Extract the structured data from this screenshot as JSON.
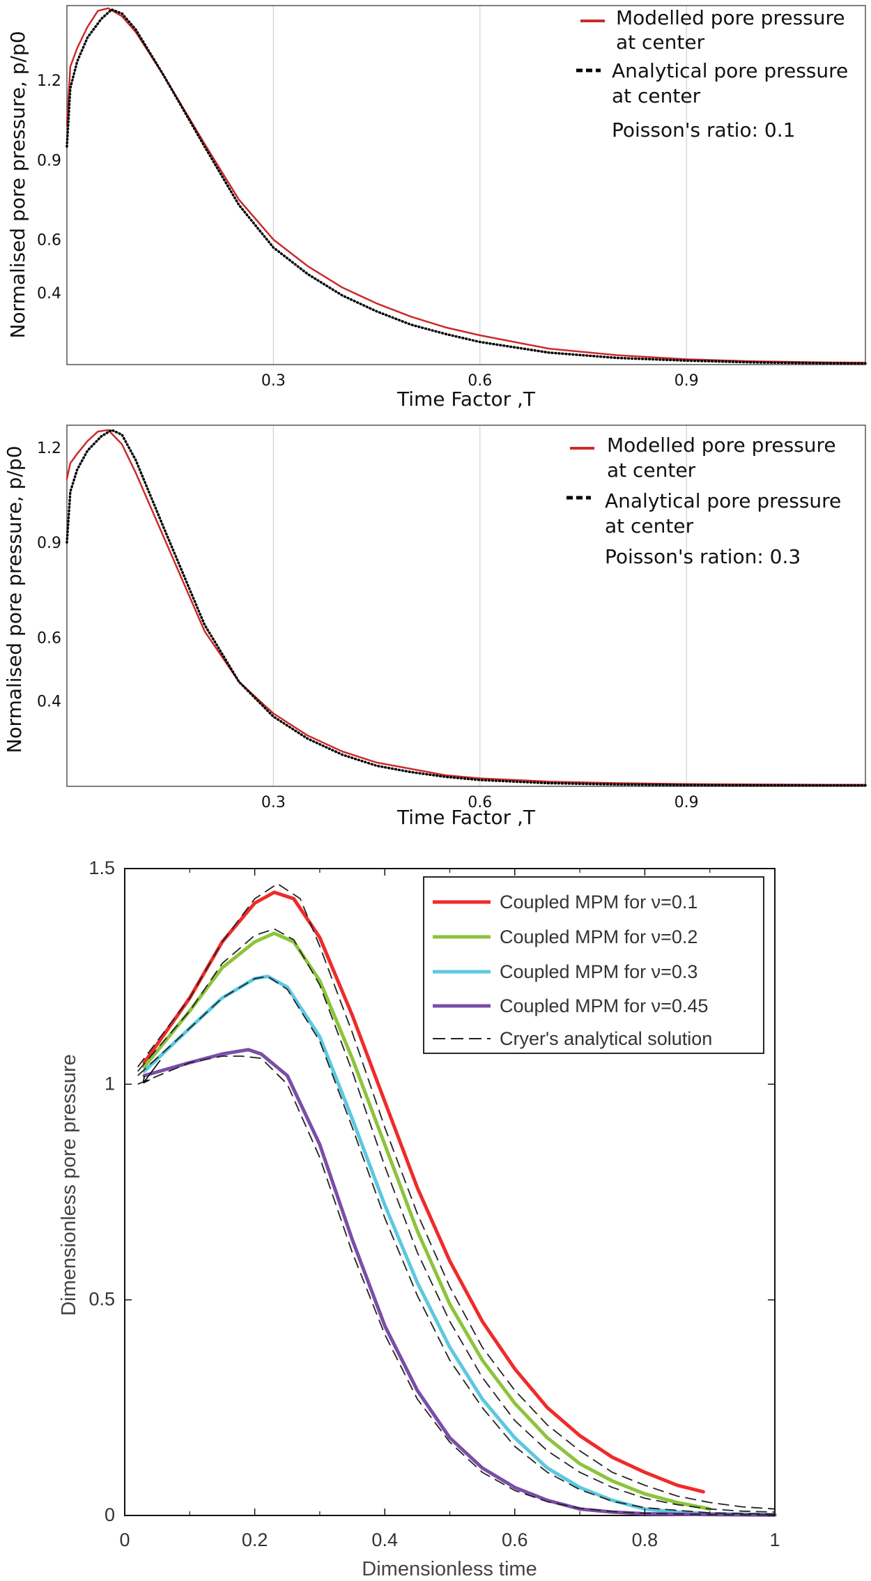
{
  "chart_data": [
    {
      "type": "line",
      "xlabel": "Time Factor ,T",
      "ylabel": "Normalised pore pressure, p/p0",
      "xlim": [
        0,
        1.16
      ],
      "ylim": [
        0.13,
        1.48
      ],
      "xticks": [
        0.3,
        0.6,
        0.9
      ],
      "xtick_labels": [
        "0.3",
        "0.6",
        "0.9"
      ],
      "yticks": [
        0.4,
        0.6,
        0.9,
        1.2
      ],
      "ytick_labels": [
        "0.4",
        "0.6",
        "0.9",
        "1.2"
      ],
      "grid": "vertical",
      "legend_position": "top-right",
      "annotation": "Poisson's ratio: 0.1",
      "series": [
        {
          "name": "Modelled pore pressure at center",
          "legend_line1": "Modelled pore pressure",
          "legend_line2": "at center",
          "color": "#cc2a2a",
          "style": "solid",
          "x": [
            0,
            0.005,
            0.015,
            0.03,
            0.045,
            0.06,
            0.08,
            0.1,
            0.14,
            0.2,
            0.25,
            0.3,
            0.35,
            0.4,
            0.45,
            0.5,
            0.55,
            0.6,
            0.7,
            0.8,
            0.9,
            1.0,
            1.1,
            1.16
          ],
          "y": [
            1.03,
            1.25,
            1.32,
            1.4,
            1.46,
            1.47,
            1.44,
            1.38,
            1.22,
            0.96,
            0.75,
            0.6,
            0.5,
            0.42,
            0.36,
            0.31,
            0.27,
            0.24,
            0.19,
            0.165,
            0.15,
            0.142,
            0.138,
            0.137
          ]
        },
        {
          "name": "Analytical pore pressure at center",
          "legend_line1": "Analytical pore pressure",
          "legend_line2": "at center",
          "color": "#000000",
          "style": "dotted",
          "x": [
            0,
            0.005,
            0.015,
            0.03,
            0.05,
            0.065,
            0.08,
            0.1,
            0.14,
            0.2,
            0.25,
            0.3,
            0.35,
            0.4,
            0.45,
            0.5,
            0.55,
            0.6,
            0.7,
            0.8,
            0.9,
            1.0,
            1.1,
            1.16
          ],
          "y": [
            0.95,
            1.17,
            1.27,
            1.36,
            1.43,
            1.465,
            1.45,
            1.39,
            1.22,
            0.95,
            0.73,
            0.57,
            0.47,
            0.39,
            0.33,
            0.28,
            0.245,
            0.215,
            0.175,
            0.155,
            0.145,
            0.138,
            0.135,
            0.134
          ]
        }
      ]
    },
    {
      "type": "line",
      "xlabel": "Time Factor ,T",
      "ylabel": "Normalised pore pressure, p/p0",
      "xlim": [
        0,
        1.16
      ],
      "ylim": [
        0.13,
        1.27
      ],
      "xticks": [
        0.3,
        0.6,
        0.9
      ],
      "xtick_labels": [
        "0.3",
        "0.6",
        "0.9"
      ],
      "yticks": [
        0.4,
        0.6,
        0.9,
        1.2
      ],
      "ytick_labels": [
        "0.4",
        "0.6",
        "0.9",
        "1.2"
      ],
      "grid": "vertical",
      "legend_position": "top-right",
      "annotation": "Poisson's ration: 0.3",
      "series": [
        {
          "name": "Modelled pore pressure at center",
          "legend_line1": "Modelled pore pressure",
          "legend_line2": "at center",
          "color": "#cc2a2a",
          "style": "solid",
          "x": [
            0,
            0.005,
            0.015,
            0.03,
            0.045,
            0.06,
            0.08,
            0.1,
            0.14,
            0.2,
            0.25,
            0.3,
            0.35,
            0.4,
            0.45,
            0.5,
            0.55,
            0.6,
            0.7,
            0.8,
            0.9,
            1.0,
            1.1,
            1.16
          ],
          "y": [
            1.1,
            1.15,
            1.18,
            1.22,
            1.25,
            1.255,
            1.21,
            1.12,
            0.92,
            0.62,
            0.46,
            0.36,
            0.29,
            0.24,
            0.205,
            0.185,
            0.165,
            0.155,
            0.145,
            0.14,
            0.137,
            0.136,
            0.135,
            0.135
          ]
        },
        {
          "name": "Analytical pore pressure at center",
          "legend_line1": "Analytical pore pressure",
          "legend_line2": "at center",
          "color": "#000000",
          "style": "dotted",
          "x": [
            0,
            0.005,
            0.015,
            0.03,
            0.05,
            0.065,
            0.08,
            0.1,
            0.14,
            0.2,
            0.25,
            0.3,
            0.35,
            0.4,
            0.45,
            0.5,
            0.55,
            0.6,
            0.7,
            0.8,
            0.9,
            1.0,
            1.1,
            1.16
          ],
          "y": [
            0.9,
            1.06,
            1.13,
            1.19,
            1.235,
            1.255,
            1.24,
            1.16,
            0.95,
            0.64,
            0.46,
            0.35,
            0.28,
            0.23,
            0.195,
            0.175,
            0.16,
            0.15,
            0.14,
            0.136,
            0.134,
            0.133,
            0.133,
            0.133
          ]
        }
      ]
    },
    {
      "type": "line",
      "xlabel": "Dimensionless time",
      "ylabel": "Dimensionless pore pressure",
      "xlim": [
        0,
        1
      ],
      "ylim": [
        0,
        1.5
      ],
      "xticks": [
        0,
        0.2,
        0.4,
        0.6,
        0.8,
        1
      ],
      "xtick_labels": [
        "0",
        "0.2",
        "0.4",
        "0.6",
        "0.8",
        "1"
      ],
      "yticks": [
        0,
        0.5,
        1,
        1.5
      ],
      "ytick_labels": [
        "0",
        "0.5",
        "1",
        "1.5"
      ],
      "grid": "off",
      "legend_position": "top-right",
      "series": [
        {
          "name": "Coupled MPM for ν=0.1",
          "color": "#ef2b2b",
          "style": "solid",
          "x": [
            0.03,
            0.1,
            0.15,
            0.2,
            0.23,
            0.26,
            0.3,
            0.35,
            0.4,
            0.45,
            0.5,
            0.55,
            0.6,
            0.65,
            0.7,
            0.75,
            0.8,
            0.85,
            0.89
          ],
          "y": [
            1.05,
            1.2,
            1.33,
            1.42,
            1.445,
            1.43,
            1.34,
            1.16,
            0.96,
            0.76,
            0.59,
            0.45,
            0.34,
            0.25,
            0.185,
            0.135,
            0.1,
            0.07,
            0.055
          ]
        },
        {
          "name": "Coupled MPM for ν=0.2",
          "color": "#8cc43c",
          "style": "solid",
          "x": [
            0.03,
            0.1,
            0.15,
            0.2,
            0.23,
            0.26,
            0.3,
            0.35,
            0.4,
            0.45,
            0.5,
            0.55,
            0.6,
            0.65,
            0.7,
            0.75,
            0.8,
            0.85,
            0.9
          ],
          "y": [
            1.04,
            1.17,
            1.27,
            1.33,
            1.35,
            1.33,
            1.24,
            1.06,
            0.86,
            0.66,
            0.49,
            0.36,
            0.26,
            0.18,
            0.12,
            0.08,
            0.05,
            0.03,
            0.015
          ]
        },
        {
          "name": "Coupled MPM for ν=0.3",
          "color": "#5cc8e0",
          "style": "solid",
          "x": [
            0.03,
            0.1,
            0.15,
            0.2,
            0.22,
            0.25,
            0.3,
            0.35,
            0.4,
            0.45,
            0.5,
            0.55,
            0.6,
            0.65,
            0.7,
            0.75,
            0.8,
            0.85,
            0.9,
            1.0
          ],
          "y": [
            1.03,
            1.13,
            1.2,
            1.245,
            1.25,
            1.225,
            1.11,
            0.92,
            0.72,
            0.54,
            0.39,
            0.27,
            0.18,
            0.11,
            0.065,
            0.035,
            0.015,
            0.008,
            0.004,
            0.002
          ]
        },
        {
          "name": "Coupled MPM for ν=0.45",
          "color": "#7a4ea8",
          "style": "solid",
          "x": [
            0.03,
            0.1,
            0.15,
            0.19,
            0.21,
            0.25,
            0.3,
            0.35,
            0.4,
            0.45,
            0.5,
            0.55,
            0.6,
            0.65,
            0.7,
            0.75,
            0.8,
            0.9,
            1.0
          ],
          "y": [
            1.02,
            1.05,
            1.07,
            1.08,
            1.07,
            1.02,
            0.86,
            0.64,
            0.44,
            0.29,
            0.18,
            0.11,
            0.065,
            0.035,
            0.015,
            0.008,
            0.004,
            0.002,
            0.001
          ]
        },
        {
          "name": "Cryer's analytical solution",
          "color": "#222222",
          "style": "dashed",
          "curves": [
            {
              "x": [
                0.02,
                0.1,
                0.15,
                0.2,
                0.235,
                0.27,
                0.3,
                0.35,
                0.4,
                0.45,
                0.5,
                0.55,
                0.6,
                0.65,
                0.7,
                0.75,
                0.8,
                0.85,
                0.9,
                0.95,
                1.0
              ],
              "y": [
                1.04,
                1.2,
                1.33,
                1.43,
                1.465,
                1.43,
                1.32,
                1.12,
                0.9,
                0.7,
                0.53,
                0.39,
                0.29,
                0.21,
                0.15,
                0.1,
                0.07,
                0.045,
                0.03,
                0.02,
                0.015
              ]
            },
            {
              "x": [
                0.02,
                0.1,
                0.15,
                0.2,
                0.23,
                0.26,
                0.3,
                0.35,
                0.4,
                0.45,
                0.5,
                0.55,
                0.6,
                0.65,
                0.7,
                0.75,
                0.8,
                0.85,
                0.9,
                0.95,
                1.0
              ],
              "y": [
                1.03,
                1.17,
                1.28,
                1.345,
                1.36,
                1.335,
                1.23,
                1.03,
                0.81,
                0.61,
                0.45,
                0.32,
                0.22,
                0.15,
                0.1,
                0.065,
                0.04,
                0.025,
                0.015,
                0.01,
                0.008
              ]
            },
            {
              "x": [
                0.02,
                0.1,
                0.15,
                0.2,
                0.22,
                0.25,
                0.3,
                0.35,
                0.4,
                0.45,
                0.5,
                0.55,
                0.6,
                0.65,
                0.7,
                0.75,
                0.8,
                0.9,
                1.0
              ],
              "y": [
                1.02,
                1.13,
                1.2,
                1.245,
                1.25,
                1.22,
                1.1,
                0.9,
                0.69,
                0.51,
                0.36,
                0.25,
                0.16,
                0.1,
                0.06,
                0.033,
                0.018,
                0.006,
                0.003
              ]
            },
            {
              "x": [
                0.02,
                0.1,
                0.15,
                0.18,
                0.21,
                0.25,
                0.3,
                0.35,
                0.4,
                0.45,
                0.5,
                0.55,
                0.6,
                0.65,
                0.7,
                0.75,
                0.8,
                0.9,
                1.0
              ],
              "y": [
                1.0,
                1.05,
                1.065,
                1.065,
                1.06,
                1.0,
                0.83,
                0.61,
                0.42,
                0.27,
                0.17,
                0.1,
                0.058,
                0.032,
                0.017,
                0.009,
                0.005,
                0.002,
                0.001
              ]
            }
          ]
        }
      ]
    }
  ]
}
